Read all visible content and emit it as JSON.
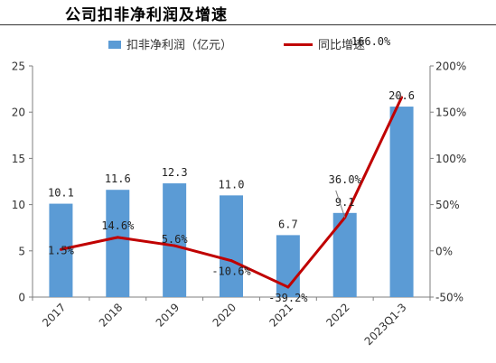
{
  "title": "公司扣非净利润及增速",
  "chart_data": {
    "type": "bar",
    "categories": [
      "2017",
      "2018",
      "2019",
      "2020",
      "2021",
      "2022",
      "2023Q1-3"
    ],
    "series": [
      {
        "name": "扣非净利润（亿元）",
        "type": "bar",
        "axis": "left",
        "color": "#5B9BD5",
        "values": [
          10.1,
          11.6,
          12.3,
          11.0,
          6.7,
          9.1,
          20.6
        ],
        "labels": [
          "10.1",
          "11.6",
          "12.3",
          "11.0",
          "6.7",
          "9.1",
          "20.6"
        ]
      },
      {
        "name": "同比增速",
        "type": "line",
        "axis": "right",
        "color": "#C00000",
        "values": [
          1.5,
          14.6,
          5.6,
          -10.6,
          -39.2,
          36.0,
          166.0
        ],
        "labels": [
          "1.5%",
          "14.6%",
          "5.6%",
          "-10.6%",
          "-39.2%",
          "36.0%",
          "166.0%"
        ]
      }
    ],
    "y_left": {
      "ylim": [
        0,
        25
      ],
      "ticks": [
        0,
        5,
        10,
        15,
        20,
        25
      ],
      "tick_labels": [
        "0",
        "5",
        "10",
        "15",
        "20",
        "25"
      ]
    },
    "y_right": {
      "ylim": [
        -50,
        200
      ],
      "ticks": [
        -50,
        0,
        50,
        100,
        150,
        200
      ],
      "tick_labels": [
        "-50%",
        "0%",
        "50%",
        "100%",
        "150%",
        "200%"
      ]
    },
    "legend": "top",
    "grid": false
  }
}
